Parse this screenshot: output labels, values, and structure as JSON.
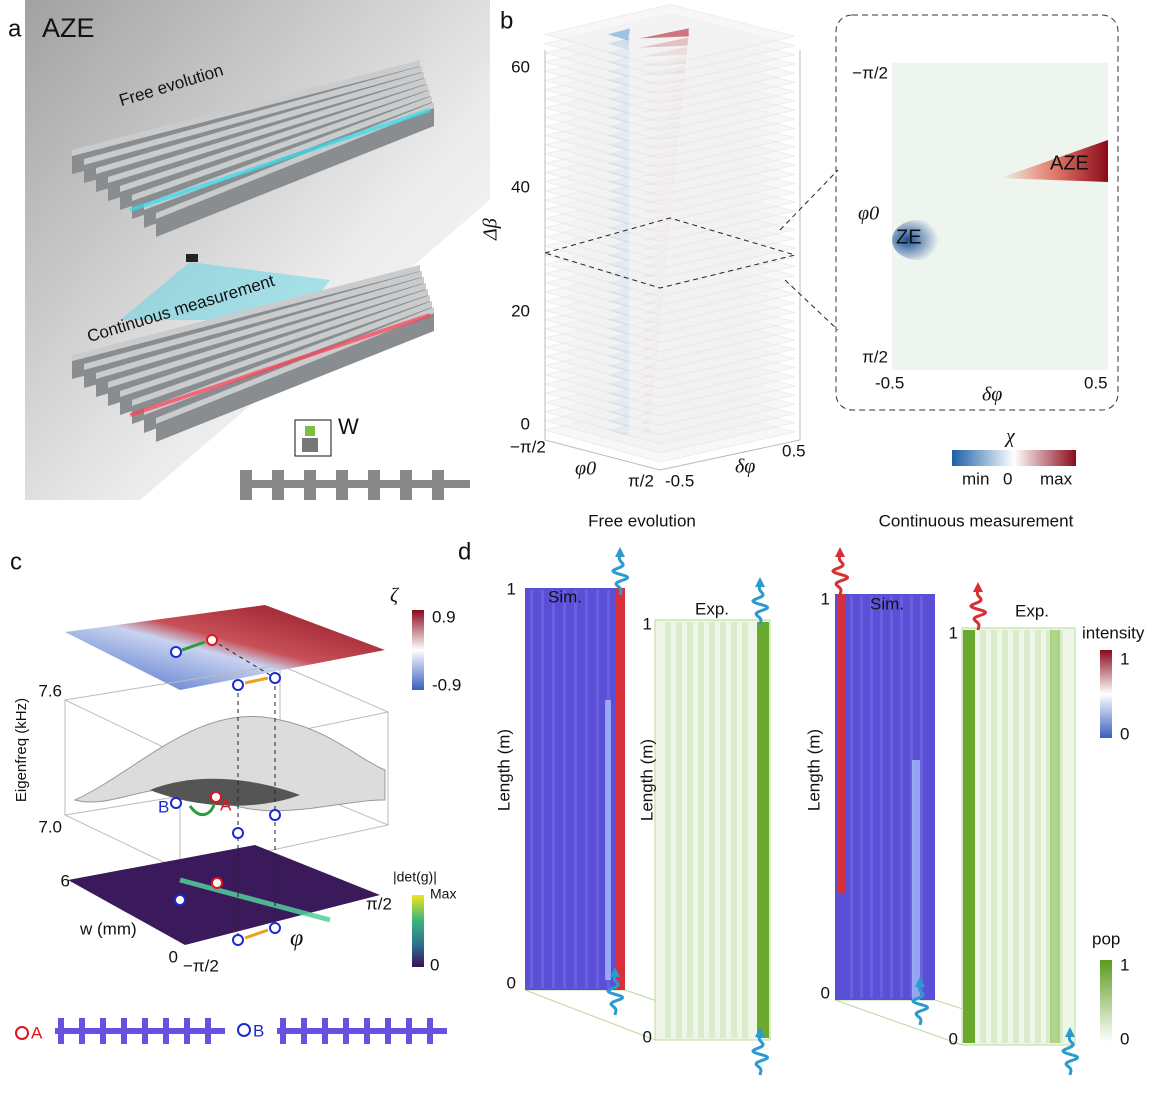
{
  "panels": {
    "a": {
      "label": "a",
      "title": "AZE",
      "top_caption": "Free evolution",
      "bottom_caption": "Continuous measurement",
      "width_label": "W"
    },
    "b": {
      "label": "b",
      "z_ticks": [
        "60",
        "40",
        "20",
        "0"
      ],
      "z_label": "Δβ",
      "phi_ticks": [
        "−π/2",
        "π/2"
      ],
      "phi_label": "φ0",
      "dphi_ticks": [
        "-0.5",
        "0.5"
      ],
      "dphi_label": "δφ",
      "inset": {
        "y_ticks": [
          "−π/2",
          "π/2"
        ],
        "y_label": "φ0",
        "x_ticks": [
          "-0.5",
          "0.5"
        ],
        "x_label": "δφ",
        "ze": "ZE",
        "aze": "AZE"
      },
      "colorbar": {
        "title": "χ",
        "labels": [
          "min",
          "0",
          "max"
        ]
      }
    },
    "c": {
      "label": "c",
      "zeta_title": "ζ",
      "zeta_ticks": [
        "0.9",
        "-0.9"
      ],
      "freq_ticks": [
        "7.6",
        "7.0"
      ],
      "freq_label": "Eigenfreq (kHz)",
      "w_ticks": [
        "6",
        "0"
      ],
      "w_label": "w (mm)",
      "phi_ticks": [
        "−π/2",
        "π/2"
      ],
      "phi_label": "φ",
      "det_title": "|det(g)|",
      "det_ticks": [
        "Max",
        "0"
      ],
      "point_b": "B",
      "point_a": "A",
      "mode_a": "A",
      "mode_b": "B"
    },
    "d": {
      "label": "d",
      "left_title": "Free evolution",
      "right_title": "Continuous measurement",
      "left": {
        "sim": "Sim.",
        "exp": "Exp.",
        "sim_ticks": [
          "1",
          "0"
        ],
        "sim_label": "Length (m)",
        "exp_ticks": [
          "1",
          "0"
        ],
        "exp_label": "Length (m)"
      },
      "right": {
        "sim": "Sim.",
        "exp": "Exp.",
        "sim_ticks": [
          "1",
          "0"
        ],
        "sim_label": "Length (m)",
        "exp_ticks": [
          "1",
          "0"
        ]
      },
      "intensity": {
        "title": "intensity",
        "ticks": [
          "1",
          "0"
        ]
      },
      "pop": {
        "title": "pop",
        "ticks": [
          "1",
          "0"
        ]
      }
    }
  }
}
